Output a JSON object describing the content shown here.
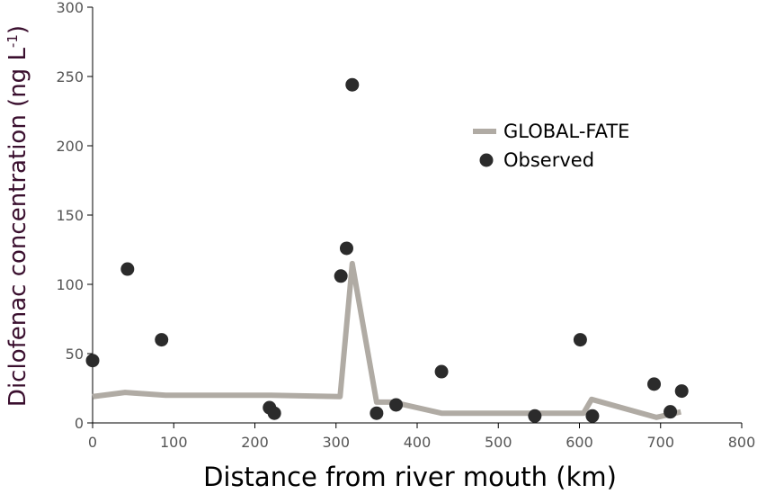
{
  "chart_data": {
    "type": "scatter",
    "xlabel": "Distance from river mouth (km)",
    "ylabel": "Diclofenac concentration (ng L",
    "ylabel_sup": "-1",
    "ylabel_close": ")",
    "xlim": [
      0,
      800
    ],
    "ylim": [
      0,
      300
    ],
    "xticks": [
      0,
      100,
      200,
      300,
      400,
      500,
      600,
      700,
      800
    ],
    "yticks": [
      0,
      50,
      100,
      150,
      200,
      250,
      300
    ],
    "grid": false,
    "legend_position": "top-right",
    "series": [
      {
        "name": "GLOBAL-FATE",
        "kind": "line",
        "color": "#b0aba4",
        "x": [
          0,
          40,
          90,
          220,
          305,
          320,
          350,
          370,
          430,
          545,
          605,
          615,
          695,
          725
        ],
        "y": [
          19,
          22,
          20,
          20,
          19,
          115,
          15,
          15,
          7,
          7,
          7,
          17,
          4,
          8
        ]
      },
      {
        "name": "Observed",
        "kind": "scatter",
        "color": "#2b2b2b",
        "x": [
          0,
          43,
          85,
          218,
          224,
          306,
          313,
          320,
          350,
          374,
          430,
          545,
          601,
          616,
          692,
          712,
          726
        ],
        "y": [
          45,
          111,
          60,
          11,
          7,
          106,
          126,
          244,
          7,
          13,
          37,
          5,
          60,
          5,
          28,
          8,
          23
        ]
      }
    ]
  }
}
